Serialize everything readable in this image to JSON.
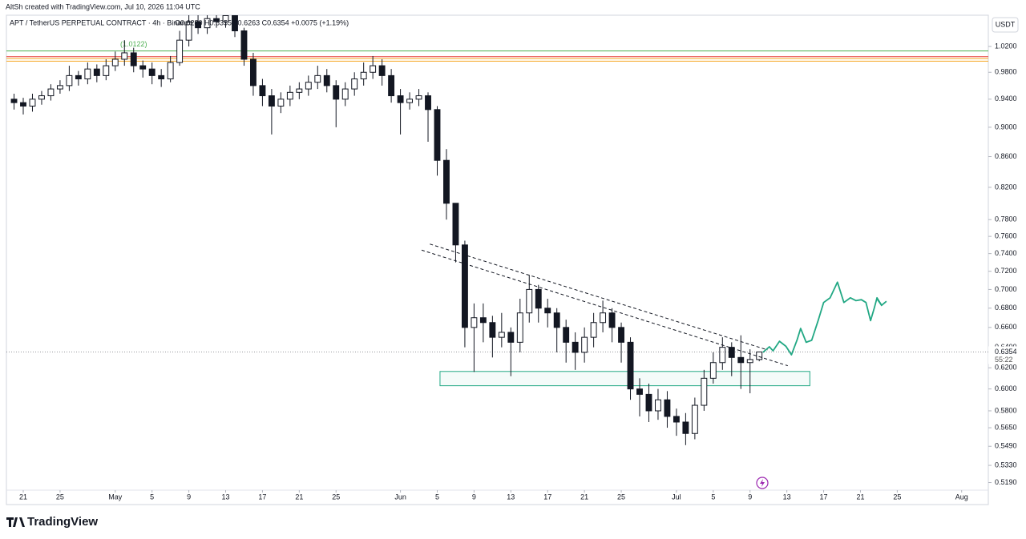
{
  "attribution": "AltSh created with TradingView.com, Jul 10, 2026 11:04 UTC",
  "currency_button": "USDT",
  "brand": "TradingView",
  "chart_data": {
    "type": "candlestick",
    "symbol": "APT / TetherUS PERPETUAL CONTRACT · 4h · Binance",
    "ohlc": "O0.6280 H0.6355 L0.6263 C0.6354 +0.0075 (+1.19%)",
    "log_scale": true,
    "up_color": "#ffffff",
    "down_color": "#131722",
    "x": [
      -1,
      0,
      1,
      2,
      3,
      4,
      5,
      6,
      7,
      8,
      9,
      10,
      11,
      12,
      13,
      14,
      15,
      16,
      17,
      18,
      19,
      20,
      21,
      22,
      23,
      24,
      25,
      26,
      27,
      28,
      29,
      30,
      31,
      32,
      33,
      34,
      35,
      36,
      37,
      38,
      39,
      40,
      41,
      42,
      43,
      44,
      45,
      46,
      47,
      48,
      49,
      50,
      51,
      52,
      53,
      54,
      55,
      56,
      57,
      58,
      59,
      60,
      61,
      62,
      63,
      64,
      65,
      66,
      67,
      68,
      69,
      70,
      71,
      72,
      73,
      74,
      75,
      76,
      77,
      78,
      79,
      80
    ],
    "open": [
      0.94,
      0.935,
      0.93,
      0.94,
      0.945,
      0.955,
      0.96,
      0.975,
      0.97,
      0.985,
      0.975,
      0.99,
      1.0,
      1.01,
      0.99,
      0.985,
      0.975,
      0.97,
      0.995,
      1.03,
      1.06,
      1.05,
      1.065,
      1.06,
      1.07,
      1.045,
      1.0,
      0.96,
      0.945,
      0.93,
      0.94,
      0.95,
      0.955,
      0.965,
      0.975,
      0.96,
      0.94,
      0.955,
      0.97,
      0.98,
      0.99,
      0.975,
      0.945,
      0.935,
      0.94,
      0.945,
      0.925,
      0.855,
      0.8,
      0.75,
      0.66,
      0.67,
      0.665,
      0.65,
      0.655,
      0.645,
      0.675,
      0.7,
      0.68,
      0.675,
      0.66,
      0.645,
      0.635,
      0.65,
      0.665,
      0.675,
      0.66,
      0.645,
      0.6,
      0.595,
      0.58,
      0.59,
      0.575,
      0.57,
      0.56,
      0.585,
      0.61,
      0.625,
      0.64,
      0.63,
      0.625,
      0.628
    ],
    "high": [
      0.948,
      0.942,
      0.948,
      0.952,
      0.962,
      0.968,
      0.99,
      0.982,
      0.995,
      0.992,
      1.0,
      1.012,
      1.03,
      1.018,
      0.998,
      0.995,
      0.985,
      1.005,
      1.045,
      1.08,
      1.075,
      1.08,
      1.08,
      1.085,
      1.08,
      1.05,
      1.01,
      0.97,
      0.955,
      0.95,
      0.96,
      0.965,
      0.975,
      0.99,
      0.985,
      0.968,
      0.965,
      0.98,
      0.995,
      1.005,
      1.0,
      0.985,
      0.955,
      0.95,
      0.955,
      0.95,
      0.93,
      0.87,
      0.8,
      0.755,
      0.685,
      0.685,
      0.672,
      0.675,
      0.66,
      0.69,
      0.716,
      0.705,
      0.69,
      0.68,
      0.668,
      0.655,
      0.66,
      0.675,
      0.688,
      0.68,
      0.665,
      0.65,
      0.61,
      0.605,
      0.6,
      0.598,
      0.582,
      0.578,
      0.592,
      0.618,
      0.635,
      0.65,
      0.645,
      0.652,
      0.638,
      0.6355
    ],
    "low": [
      0.925,
      0.918,
      0.922,
      0.932,
      0.938,
      0.948,
      0.952,
      0.96,
      0.962,
      0.965,
      0.968,
      0.982,
      0.99,
      0.98,
      0.972,
      0.962,
      0.958,
      0.965,
      0.99,
      1.02,
      1.04,
      1.04,
      1.05,
      1.05,
      1.035,
      0.99,
      0.945,
      0.93,
      0.89,
      0.92,
      0.93,
      0.94,
      0.945,
      0.955,
      0.95,
      0.9,
      0.93,
      0.945,
      0.96,
      0.97,
      0.96,
      0.935,
      0.89,
      0.925,
      0.93,
      0.88,
      0.835,
      0.78,
      0.73,
      0.64,
      0.616,
      0.645,
      0.63,
      0.64,
      0.612,
      0.635,
      0.665,
      0.665,
      0.66,
      0.635,
      0.625,
      0.618,
      0.625,
      0.64,
      0.655,
      0.645,
      0.625,
      0.59,
      0.575,
      0.57,
      0.572,
      0.565,
      0.558,
      0.55,
      0.555,
      0.58,
      0.605,
      0.618,
      0.612,
      0.6,
      0.596,
      0.6263
    ],
    "close": [
      0.935,
      0.93,
      0.94,
      0.945,
      0.955,
      0.96,
      0.975,
      0.97,
      0.985,
      0.975,
      0.99,
      1.0,
      1.01,
      0.99,
      0.985,
      0.975,
      0.97,
      0.995,
      1.03,
      1.06,
      1.05,
      1.065,
      1.06,
      1.07,
      1.045,
      1.0,
      0.96,
      0.945,
      0.93,
      0.94,
      0.95,
      0.955,
      0.965,
      0.975,
      0.96,
      0.94,
      0.955,
      0.97,
      0.98,
      0.99,
      0.975,
      0.945,
      0.935,
      0.94,
      0.945,
      0.925,
      0.855,
      0.8,
      0.75,
      0.66,
      0.67,
      0.665,
      0.65,
      0.655,
      0.645,
      0.675,
      0.7,
      0.68,
      0.675,
      0.66,
      0.645,
      0.635,
      0.65,
      0.665,
      0.675,
      0.66,
      0.645,
      0.6,
      0.595,
      0.58,
      0.59,
      0.575,
      0.57,
      0.56,
      0.585,
      0.61,
      0.625,
      0.64,
      0.63,
      0.625,
      0.628,
      0.6354
    ],
    "xlim": [
      -1.83,
      104.9
    ],
    "ylim": [
      0.5016,
      1.0706
    ],
    "yticks": [
      {
        "value": 1.02,
        "label": "1.0200"
      },
      {
        "value": 0.98,
        "label": "0.9800"
      },
      {
        "value": 0.94,
        "label": "0.9400"
      },
      {
        "value": 0.9,
        "label": "0.9000"
      },
      {
        "value": 0.86,
        "label": "0.8600"
      },
      {
        "value": 0.82,
        "label": "0.8200"
      },
      {
        "value": 0.78,
        "label": "0.7800"
      },
      {
        "value": 0.76,
        "label": "0.7600"
      },
      {
        "value": 0.74,
        "label": "0.7400"
      },
      {
        "value": 0.72,
        "label": "0.7200"
      },
      {
        "value": 0.7,
        "label": "0.7000"
      },
      {
        "value": 0.68,
        "label": "0.6800"
      },
      {
        "value": 0.66,
        "label": "0.6600"
      },
      {
        "value": 0.64,
        "label": "0.6400"
      },
      {
        "value": 0.62,
        "label": "0.6200"
      },
      {
        "value": 0.6,
        "label": "0.6000"
      },
      {
        "value": 0.58,
        "label": "0.5800"
      },
      {
        "value": 0.565,
        "label": "0.5650"
      },
      {
        "value": 0.549,
        "label": "0.5490"
      },
      {
        "value": 0.533,
        "label": "0.5330"
      },
      {
        "value": 0.519,
        "label": "0.5190"
      }
    ],
    "xticks": [
      {
        "value": 0,
        "label": "21"
      },
      {
        "value": 4,
        "label": "25"
      },
      {
        "value": 10,
        "label": "May"
      },
      {
        "value": 14,
        "label": "5"
      },
      {
        "value": 18,
        "label": "9"
      },
      {
        "value": 22,
        "label": "13"
      },
      {
        "value": 26,
        "label": "17"
      },
      {
        "value": 30,
        "label": "21"
      },
      {
        "value": 34,
        "label": "25"
      },
      {
        "value": 41,
        "label": "Jun"
      },
      {
        "value": 45,
        "label": "5"
      },
      {
        "value": 49,
        "label": "9"
      },
      {
        "value": 53,
        "label": "13"
      },
      {
        "value": 57,
        "label": "17"
      },
      {
        "value": 61,
        "label": "21"
      },
      {
        "value": 65,
        "label": "25"
      },
      {
        "value": 71,
        "label": "Jul"
      },
      {
        "value": 75,
        "label": "5"
      },
      {
        "value": 79,
        "label": "9"
      },
      {
        "value": 83,
        "label": "13"
      },
      {
        "value": 87,
        "label": "17"
      },
      {
        "value": 91,
        "label": "21"
      },
      {
        "value": 95,
        "label": "25"
      },
      {
        "value": 102,
        "label": "Aug"
      }
    ],
    "last_price": 0.6354,
    "countdown": "55:22",
    "projection": {
      "color": "#22a884",
      "x": [
        80.4,
        81.1,
        81.5,
        82.2,
        82.9,
        83.5,
        84.1,
        84.5,
        85.1,
        85.7,
        86.4,
        87.0,
        87.7,
        88.5,
        89.2,
        89.9,
        90.5,
        91.1,
        91.6,
        92.1,
        92.5,
        92.8,
        93.3
      ],
      "y": [
        0.635,
        0.6405,
        0.6365,
        0.646,
        0.641,
        0.6326,
        0.647,
        0.659,
        0.645,
        0.647,
        0.667,
        0.686,
        0.691,
        0.708,
        0.686,
        0.691,
        0.688,
        0.689,
        0.686,
        0.667,
        0.68,
        0.691,
        0.683
      ]
    },
    "trendlines": [
      {
        "x": [
          44.2,
          80.9
        ],
        "y": [
          0.751,
          0.6374
        ]
      },
      {
        "x": [
          43.3,
          83.1
        ],
        "y": [
          0.744,
          0.622
        ]
      }
    ],
    "zone": {
      "x": [
        45.3,
        85.5
      ],
      "y": [
        0.603,
        0.6165
      ],
      "color": "#22a884"
    },
    "levels": [
      {
        "value": 1.013,
        "color": "#4caf50"
      },
      {
        "value": 1.004,
        "color": "#e53935"
      },
      {
        "value": 1.001,
        "color": "#f5a623"
      },
      {
        "value": 0.997,
        "color": "#f5a623"
      }
    ],
    "level_label": "(1.0122)"
  }
}
